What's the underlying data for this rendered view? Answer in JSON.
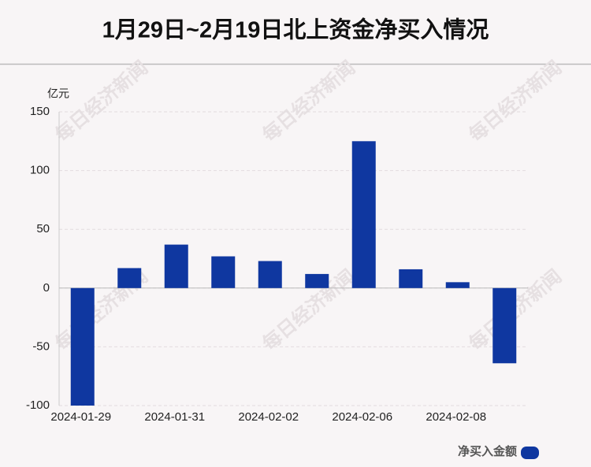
{
  "chart_data": {
    "type": "bar",
    "title": "1月29日~2月19日北上资金净买入情况",
    "y_unit": "亿元",
    "watermark": "每日经济新闻",
    "categories": [
      "2024-01-29",
      null,
      "2024-01-31",
      null,
      "2024-02-02",
      null,
      "2024-02-06",
      null,
      "2024-02-08",
      null
    ],
    "series": [
      {
        "name": "净买入金额",
        "color": "#0f37a0",
        "values": [
          -100,
          17,
          37,
          27,
          23,
          12,
          125,
          16,
          5,
          -64
        ]
      }
    ],
    "ylim": [
      -100,
      150
    ],
    "yticks": [
      -100,
      -50,
      0,
      50,
      100,
      150
    ],
    "grid": true
  }
}
